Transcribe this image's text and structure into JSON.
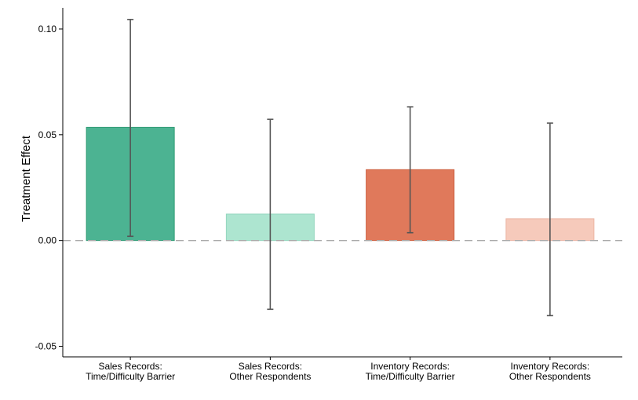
{
  "chart_data": {
    "type": "bar",
    "title": "",
    "xlabel": "",
    "ylabel": "Treatment Effect",
    "ylim": [
      -0.055,
      0.11
    ],
    "yticks": [
      "-0.05",
      "0.00",
      "0.05",
      "0.10"
    ],
    "yticks_values": [
      -0.05,
      0.0,
      0.05,
      0.1
    ],
    "grid": false,
    "reference_line": 0.0,
    "categories": [
      {
        "line1": "Sales Records:",
        "line2": "Time/Difficulty Barrier"
      },
      {
        "line1": "Sales Records:",
        "line2": "Other Respondents"
      },
      {
        "line1": "Inventory Records:",
        "line2": "Time/Difficulty Barrier"
      },
      {
        "line1": "Inventory Records:",
        "line2": "Other Respondents"
      }
    ],
    "values": [
      0.0535,
      0.0125,
      0.0335,
      0.0103
    ],
    "ci_low": [
      0.002,
      -0.0325,
      0.0037,
      -0.0355
    ],
    "ci_high": [
      0.1045,
      0.0573,
      0.0632,
      0.0555
    ],
    "colors": {
      "bars": [
        "#4cb392",
        "#ade5d0",
        "#e0795b",
        "#f6cabb"
      ],
      "bar_edges": [
        "#2e9a73",
        "#92d6bd",
        "#cc5f40",
        "#ebb5a4"
      ],
      "error_bars": "#555555",
      "reference_line": "#aaaaaa",
      "axis": "#000000"
    }
  }
}
